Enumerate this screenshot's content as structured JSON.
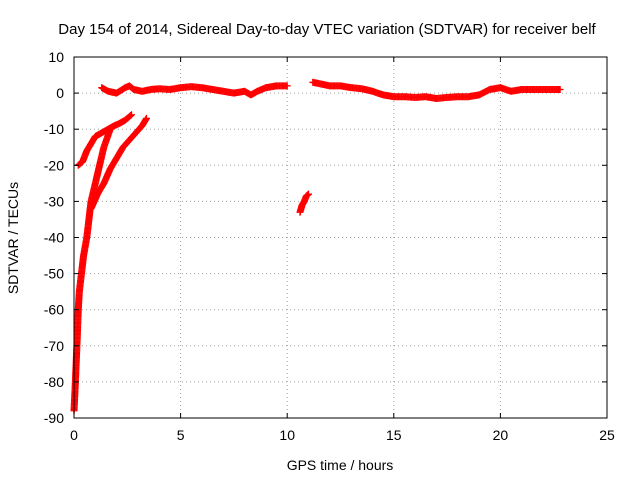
{
  "chart_data": {
    "type": "scatter",
    "title": "Day 154 of 2014, Sidereal Day-to-day VTEC variation (SDTVAR) for receiver belf",
    "xlabel": "GPS time / hours",
    "ylabel": "SDTVAR / TECUs",
    "xlim": [
      0,
      25
    ],
    "ylim": [
      -90,
      10
    ],
    "xticks": [
      0,
      5,
      10,
      15,
      20,
      25
    ],
    "yticks": [
      10,
      0,
      -10,
      -20,
      -30,
      -40,
      -50,
      -60,
      -70,
      -80,
      -90
    ],
    "grid": true,
    "marker": "plus",
    "color": "#ff0000",
    "series": [
      {
        "name": "SDTVAR",
        "segments": [
          {
            "id": "main-track-1",
            "points": [
              [
                1.3,
                1.5
              ],
              [
                1.6,
                0.5
              ],
              [
                2.0,
                0.0
              ],
              [
                2.4,
                1.5
              ],
              [
                2.6,
                2.0
              ],
              [
                2.8,
                1.0
              ],
              [
                3.2,
                0.5
              ],
              [
                3.6,
                1.0
              ],
              [
                4.0,
                1.2
              ],
              [
                4.5,
                1.0
              ],
              [
                5.0,
                1.5
              ],
              [
                5.5,
                1.8
              ],
              [
                6.0,
                1.5
              ],
              [
                6.5,
                1.0
              ],
              [
                7.0,
                0.5
              ],
              [
                7.5,
                0.0
              ],
              [
                8.0,
                0.5
              ],
              [
                8.3,
                -0.5
              ],
              [
                8.6,
                0.5
              ],
              [
                9.0,
                1.5
              ],
              [
                9.5,
                2.0
              ],
              [
                10.0,
                2.0
              ]
            ]
          },
          {
            "id": "main-track-2",
            "points": [
              [
                11.2,
                3.0
              ],
              [
                11.6,
                2.5
              ],
              [
                12.0,
                2.0
              ],
              [
                12.5,
                2.0
              ],
              [
                13.0,
                1.5
              ],
              [
                13.5,
                1.2
              ],
              [
                14.0,
                0.5
              ],
              [
                14.5,
                -0.5
              ],
              [
                15.0,
                -1.0
              ],
              [
                15.5,
                -1.0
              ],
              [
                16.0,
                -1.2
              ],
              [
                16.5,
                -1.0
              ],
              [
                17.0,
                -1.5
              ],
              [
                17.5,
                -1.2
              ],
              [
                18.0,
                -1.0
              ],
              [
                18.5,
                -1.0
              ],
              [
                19.0,
                -0.5
              ],
              [
                19.5,
                1.0
              ],
              [
                20.0,
                1.5
              ],
              [
                20.5,
                0.5
              ],
              [
                21.0,
                1.0
              ],
              [
                21.5,
                1.0
              ],
              [
                22.0,
                1.0
              ],
              [
                22.5,
                1.0
              ],
              [
                22.8,
                1.0
              ]
            ]
          },
          {
            "id": "drop-left",
            "points": [
              [
                0.0,
                -88
              ],
              [
                0.05,
                -82
              ],
              [
                0.1,
                -75
              ],
              [
                0.15,
                -68
              ],
              [
                0.2,
                -60
              ],
              [
                0.25,
                -55
              ],
              [
                0.35,
                -50
              ],
              [
                0.45,
                -45
              ],
              [
                0.6,
                -40
              ],
              [
                0.7,
                -35
              ],
              [
                0.8,
                -30
              ],
              [
                1.0,
                -25
              ],
              [
                1.2,
                -20
              ],
              [
                1.4,
                -15
              ],
              [
                1.7,
                -10
              ]
            ]
          },
          {
            "id": "branch-top",
            "points": [
              [
                0.2,
                -20
              ],
              [
                0.4,
                -19
              ],
              [
                0.6,
                -16
              ],
              [
                0.8,
                -14
              ],
              [
                1.0,
                -12
              ],
              [
                1.3,
                -11
              ],
              [
                1.6,
                -10
              ],
              [
                1.9,
                -9
              ],
              [
                2.1,
                -8.5
              ],
              [
                2.4,
                -7.5
              ],
              [
                2.7,
                -6
              ]
            ]
          },
          {
            "id": "branch-middle",
            "points": [
              [
                0.8,
                -32
              ],
              [
                1.1,
                -28
              ],
              [
                1.4,
                -25
              ],
              [
                1.7,
                -21
              ],
              [
                2.0,
                -18
              ],
              [
                2.3,
                -15
              ],
              [
                2.6,
                -13
              ],
              [
                2.9,
                -11
              ],
              [
                3.2,
                -9
              ],
              [
                3.4,
                -7
              ]
            ]
          },
          {
            "id": "isolated",
            "points": [
              [
                10.6,
                -33
              ],
              [
                10.7,
                -31
              ],
              [
                10.8,
                -30
              ],
              [
                10.9,
                -28.5
              ],
              [
                11.0,
                -28
              ]
            ]
          }
        ]
      }
    ]
  }
}
